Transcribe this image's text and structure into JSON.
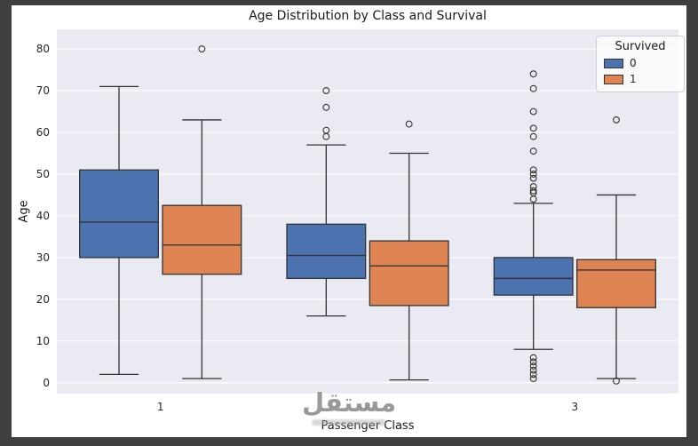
{
  "frame": {
    "outer_bg": "#3f3f3f",
    "figure_bg": "#ffffff",
    "plot_bg": "#eaeaf2",
    "grid_color": "#ffffff",
    "box_edge": "#333333"
  },
  "watermark": {
    "text": "مستقل"
  },
  "chart_data": {
    "type": "boxplot",
    "title": "Age Distribution by Class and Survival",
    "xlabel": "Passenger Class",
    "ylabel": "Age",
    "categories": [
      "1",
      "2",
      "3"
    ],
    "yticks": [
      0,
      10,
      20,
      30,
      40,
      50,
      60,
      70,
      80
    ],
    "ylim": [
      -2.6,
      84.7
    ],
    "grid": true,
    "legend": {
      "title": "Survived",
      "position": "upper right",
      "entries": [
        {
          "label": "0",
          "color": "#4c72b0"
        },
        {
          "label": "1",
          "color": "#dd8452"
        }
      ]
    },
    "series": [
      {
        "name": "0",
        "color": "#4c72b0",
        "boxes": [
          {
            "category": "1",
            "whisker_low": 2,
            "q1": 30,
            "median": 38.5,
            "q3": 51,
            "whisker_high": 71,
            "outliers": []
          },
          {
            "category": "2",
            "whisker_low": 16,
            "q1": 25,
            "median": 30.5,
            "q3": 38,
            "whisker_high": 57,
            "outliers": [
              70,
              66,
              60.5,
              59
            ]
          },
          {
            "category": "3",
            "whisker_low": 8,
            "q1": 21,
            "median": 25,
            "q3": 30,
            "whisker_high": 43,
            "outliers": [
              74,
              70.5,
              65,
              61,
              59,
              55.5,
              51,
              50,
              49,
              47,
              46,
              45.5,
              44,
              6,
              5,
              4,
              3,
              2,
              1
            ]
          }
        ]
      },
      {
        "name": "1",
        "color": "#dd8452",
        "boxes": [
          {
            "category": "1",
            "whisker_low": 1,
            "q1": 26,
            "median": 33,
            "q3": 42.5,
            "whisker_high": 63,
            "outliers": [
              80
            ]
          },
          {
            "category": "2",
            "whisker_low": 0.67,
            "q1": 18.5,
            "median": 28,
            "q3": 34,
            "whisker_high": 55,
            "outliers": [
              62
            ]
          },
          {
            "category": "3",
            "whisker_low": 1,
            "q1": 18,
            "median": 27,
            "q3": 29.5,
            "whisker_high": 45,
            "outliers": [
              63,
              0.42
            ]
          }
        ]
      }
    ]
  }
}
